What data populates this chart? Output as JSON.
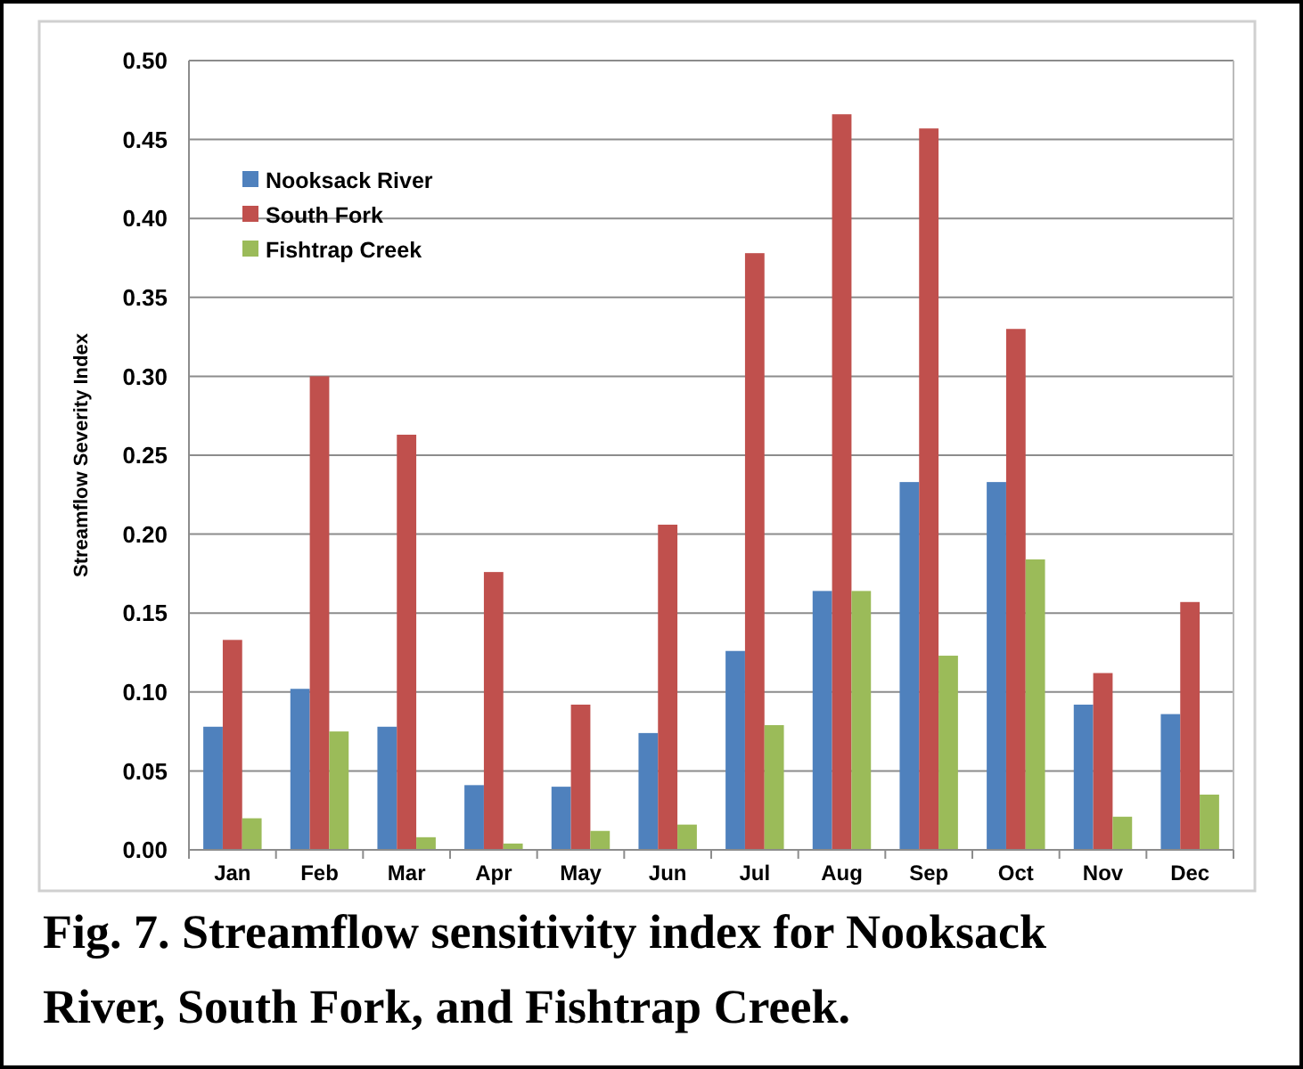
{
  "chart_data": {
    "type": "bar",
    "title": "Fig. 7. Streamflow sensitivity index for Nooksack River, South Fork, and Fishtrap Creek.",
    "ylabel": "Streamflow Severity Index",
    "categories": [
      "Jan",
      "Feb",
      "Mar",
      "Apr",
      "May",
      "Jun",
      "Jul",
      "Aug",
      "Sep",
      "Oct",
      "Nov",
      "Dec"
    ],
    "series": [
      {
        "name": "Nooksack River",
        "color": "#4f81bd",
        "values": [
          0.078,
          0.102,
          0.078,
          0.041,
          0.04,
          0.074,
          0.126,
          0.164,
          0.233,
          0.233,
          0.092,
          0.086
        ]
      },
      {
        "name": "South Fork",
        "color": "#c0504d",
        "values": [
          0.133,
          0.3,
          0.263,
          0.176,
          0.092,
          0.206,
          0.378,
          0.466,
          0.457,
          0.33,
          0.112,
          0.157
        ]
      },
      {
        "name": "Fishtrap Creek",
        "color": "#9bbb59",
        "values": [
          0.02,
          0.075,
          0.008,
          0.004,
          0.012,
          0.016,
          0.079,
          0.164,
          0.123,
          0.184,
          0.021,
          0.035
        ]
      }
    ],
    "ylim": [
      0,
      0.5
    ],
    "yticks": [
      {
        "value": 0,
        "label": "0.00"
      },
      {
        "value": 0.05,
        "label": "0.05"
      },
      {
        "value": 0.1,
        "label": "0.10"
      },
      {
        "value": 0.15,
        "label": "0.15"
      },
      {
        "value": 0.2,
        "label": "0.20"
      },
      {
        "value": 0.25,
        "label": "0.25"
      },
      {
        "value": 0.3,
        "label": "0.30"
      },
      {
        "value": 0.35,
        "label": "0.35"
      },
      {
        "value": 0.4,
        "label": "0.40"
      },
      {
        "value": 0.45,
        "label": "0.45"
      },
      {
        "value": 0.5,
        "label": "0.50"
      }
    ],
    "grid": "y",
    "legend": "top left"
  }
}
